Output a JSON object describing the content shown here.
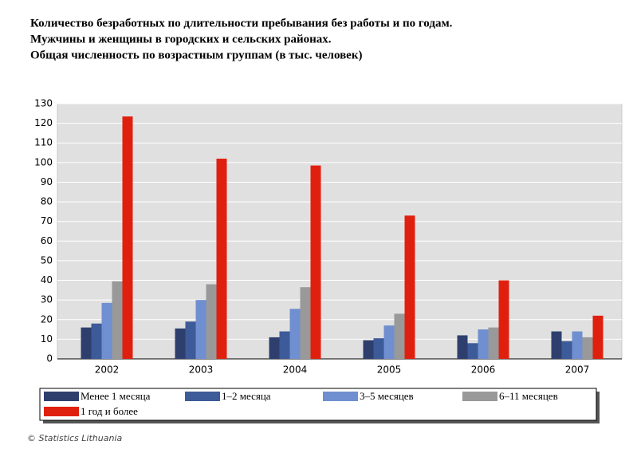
{
  "chart_data": {
    "type": "bar",
    "title": [
      "Количество безработных по длительности пребывания без работы и по годам.",
      "Мужчины и женщины в городских и сельских районах.",
      "Общая численность по возрастным группам (в тыс. человек)"
    ],
    "categories": [
      "2002",
      "2003",
      "2004",
      "2005",
      "2006",
      "2007"
    ],
    "series": [
      {
        "name": "Менее 1 месяца",
        "color": "#2e3f6e",
        "values": [
          16,
          15.5,
          11,
          9.5,
          12,
          14
        ]
      },
      {
        "name": "1–2 месяца",
        "color": "#3d5a99",
        "values": [
          18,
          19,
          14,
          10.5,
          8,
          9
        ]
      },
      {
        "name": "3–5 месяцев",
        "color": "#6f8fd0",
        "values": [
          28.5,
          30,
          25.5,
          17,
          15,
          14
        ]
      },
      {
        "name": "6–11 месяцев",
        "color": "#999999",
        "values": [
          39.5,
          38,
          36.5,
          23,
          16,
          11
        ]
      },
      {
        "name": "1 год и более",
        "color": "#e0200f",
        "values": [
          123.5,
          102,
          98.5,
          73,
          40,
          22
        ]
      }
    ],
    "ylim": [
      0,
      130
    ],
    "yticks": [
      0,
      10,
      20,
      30,
      40,
      50,
      60,
      70,
      80,
      90,
      100,
      110,
      120,
      130
    ],
    "grid": true,
    "legend": "bottom",
    "source": "© Statistics Lithuania"
  }
}
